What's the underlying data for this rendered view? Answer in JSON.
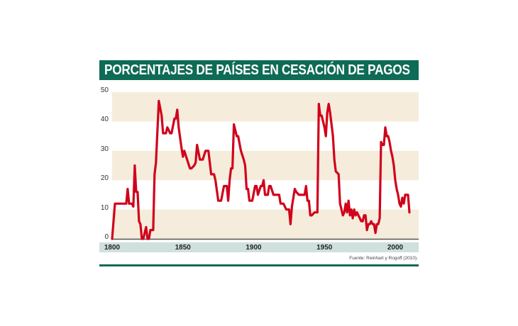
{
  "title": "PORCENTAJES DE PAÍSES EN CESACIÓN DE PAGOS",
  "source": "Fuente: Reinhart y Rogoff (2010).",
  "colors": {
    "title_bg": "#0e6b55",
    "line": "#d0021b",
    "band": "#f6ecdc",
    "xaxis_bg": "#cfe0dd"
  },
  "chart_data": {
    "type": "line",
    "title": "PORCENTAJES DE PAÍSES EN CESACIÓN DE PAGOS",
    "xlabel": "",
    "ylabel": "",
    "xlim": [
      1800,
      2010
    ],
    "ylim": [
      0,
      50
    ],
    "yticks": [
      0,
      10,
      20,
      30,
      40,
      50
    ],
    "xticks": [
      1800,
      1850,
      1900,
      1950,
      2000
    ],
    "grid": "alternating horizontal bands",
    "legend": "none",
    "source": "Fuente: Reinhart y Rogoff (2010).",
    "series": [
      {
        "name": "% países en cesación de pagos",
        "x": [
          1800,
          1802,
          1804,
          1806,
          1808,
          1810,
          1811,
          1812,
          1814,
          1815,
          1816,
          1817,
          1818,
          1819,
          1820,
          1821,
          1822,
          1824,
          1825,
          1826,
          1827,
          1829,
          1830,
          1831,
          1833,
          1835,
          1836,
          1838,
          1839,
          1841,
          1842,
          1844,
          1845,
          1846,
          1847,
          1849,
          1850,
          1851,
          1853,
          1855,
          1856,
          1858,
          1859,
          1860,
          1862,
          1864,
          1866,
          1868,
          1870,
          1872,
          1873,
          1875,
          1877,
          1879,
          1880,
          1881,
          1882,
          1883,
          1884,
          1885,
          1886,
          1888,
          1889,
          1891,
          1893,
          1894,
          1895,
          1896,
          1897,
          1899,
          1901,
          1902,
          1903,
          1905,
          1906,
          1907,
          1908,
          1910,
          1911,
          1912,
          1914,
          1916,
          1918,
          1919,
          1921,
          1923,
          1925,
          1926,
          1927,
          1929,
          1930,
          1932,
          1934,
          1936,
          1937,
          1938,
          1939,
          1940,
          1941,
          1943,
          1944,
          1945,
          1946,
          1947,
          1948,
          1949,
          1950,
          1951,
          1952,
          1953,
          1954,
          1955,
          1956,
          1957,
          1958,
          1960,
          1961,
          1963,
          1964,
          1965,
          1966,
          1967,
          1968,
          1969,
          1970,
          1971,
          1972,
          1973,
          1974,
          1975,
          1976,
          1977,
          1978,
          1979,
          1980,
          1981,
          1982,
          1983,
          1984,
          1985,
          1986,
          1987,
          1988,
          1989,
          1990,
          1991,
          1992,
          1993,
          1994,
          1995,
          1996,
          1997,
          1998,
          1999,
          2000,
          2001,
          2002,
          2003,
          2004,
          2005,
          2006,
          2007,
          2008,
          2009,
          2010
        ],
        "y": [
          0,
          12,
          12,
          12,
          12,
          12,
          17,
          12,
          12,
          11,
          25,
          16,
          16,
          6,
          5,
          0,
          0,
          4,
          0,
          0,
          3,
          3,
          22,
          26,
          47,
          42,
          36,
          36,
          38,
          36,
          36,
          41,
          41,
          44,
          38,
          31,
          28,
          30,
          27,
          24,
          24,
          25,
          26,
          32,
          27,
          27,
          30,
          30,
          22,
          22,
          20,
          13,
          13,
          18,
          18,
          18,
          13,
          20,
          24,
          24,
          39,
          35,
          35,
          30,
          27,
          25,
          17,
          17,
          13,
          13,
          18,
          18,
          15,
          18,
          18,
          20,
          15,
          15,
          18,
          18,
          15,
          15,
          15,
          12,
          12,
          10,
          10,
          5,
          11,
          17,
          16,
          15,
          15,
          15,
          18,
          13,
          13,
          8,
          8,
          9,
          9,
          9,
          46,
          42,
          42,
          40,
          38,
          35,
          43,
          46,
          43,
          39,
          35,
          27,
          23,
          22,
          12,
          8,
          9,
          12,
          9,
          13,
          8,
          10,
          7,
          10,
          8,
          9,
          8,
          7,
          6,
          6,
          8,
          8,
          3,
          5,
          5,
          6,
          5,
          5,
          2,
          5,
          5,
          7,
          33,
          32,
          32,
          38,
          35,
          35,
          33,
          30,
          28,
          25,
          20,
          17,
          15,
          12,
          11,
          14,
          12,
          15,
          15,
          15,
          9
        ]
      }
    ]
  },
  "axes": {
    "yticks": [
      "0",
      "10",
      "20",
      "30",
      "40",
      "50"
    ],
    "xticks": [
      "1800",
      "1850",
      "1900",
      "1950",
      "2000"
    ]
  }
}
